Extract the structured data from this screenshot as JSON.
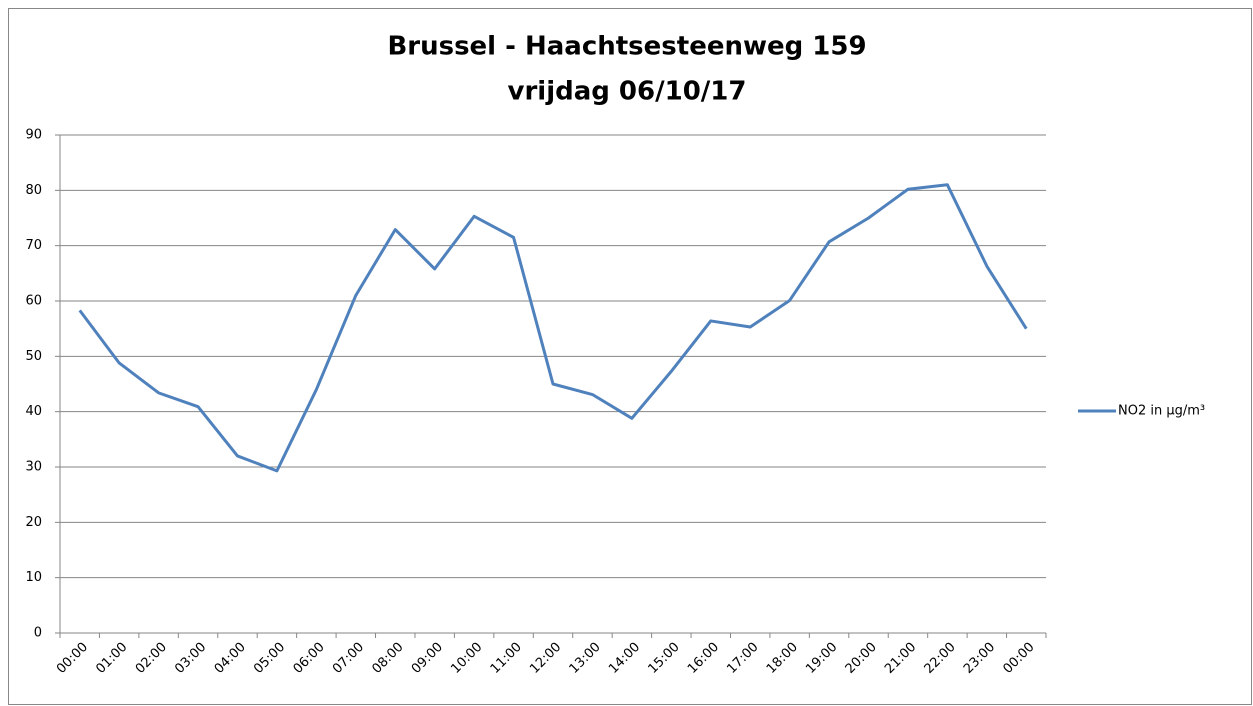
{
  "chart_data": {
    "type": "line",
    "title": "Brussel - Haachtsesteenweg 159",
    "subtitle": "vrijdag 06/10/17",
    "categories": [
      "00:00",
      "01:00",
      "02:00",
      "03:00",
      "04:00",
      "05:00",
      "06:00",
      "07:00",
      "08:00",
      "09:00",
      "10:00",
      "11:00",
      "12:00",
      "13:00",
      "14:00",
      "15:00",
      "16:00",
      "17:00",
      "18:00",
      "19:00",
      "20:00",
      "21:00",
      "22:00",
      "23:00",
      "00:00"
    ],
    "series": [
      {
        "name": "NO2 in µg/m³",
        "color": "#4f81bd",
        "values": [
          58.3,
          48.8,
          43.4,
          40.9,
          32,
          29.3,
          44,
          61,
          72.9,
          65.8,
          75.3,
          71.5,
          45,
          43.1,
          38.8,
          47.3,
          56.4,
          55.3,
          60.1,
          70.7,
          75,
          80.2,
          81,
          66.3,
          55
        ]
      }
    ],
    "ylim": [
      0,
      90
    ],
    "yticks": [
      0,
      10,
      20,
      30,
      40,
      50,
      60,
      70,
      80,
      90
    ],
    "grid": true,
    "legend": "right"
  }
}
